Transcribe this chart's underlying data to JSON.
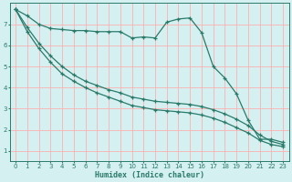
{
  "xlabel": "Humidex (Indice chaleur)",
  "bg_color": "#d4f0f0",
  "line_color": "#2a7a6a",
  "grid_color": "#ffb0b0",
  "xlim": [
    -0.5,
    23.5
  ],
  "ylim": [
    0.5,
    8.0
  ],
  "xticks": [
    0,
    1,
    2,
    3,
    4,
    5,
    6,
    7,
    8,
    9,
    10,
    11,
    12,
    13,
    14,
    15,
    16,
    17,
    18,
    19,
    20,
    21,
    22,
    23
  ],
  "yticks": [
    1,
    2,
    3,
    4,
    5,
    6,
    7
  ],
  "series1_x": [
    0,
    1,
    2,
    3,
    4,
    5,
    6,
    7,
    8,
    9,
    10,
    11,
    12,
    13,
    14,
    15,
    16,
    17,
    18,
    19,
    20,
    21,
    22,
    23
  ],
  "series1_y": [
    7.7,
    7.4,
    7.0,
    6.8,
    6.75,
    6.7,
    6.7,
    6.65,
    6.65,
    6.65,
    6.35,
    6.4,
    6.35,
    7.1,
    7.25,
    7.3,
    6.6,
    5.0,
    4.45,
    3.7,
    2.45,
    1.55,
    1.55,
    1.4
  ],
  "series2_x": [
    0,
    1,
    2,
    3,
    4,
    5,
    6,
    7,
    8,
    9,
    10,
    11,
    12,
    13,
    14,
    15,
    16,
    17,
    18,
    19,
    20,
    21,
    22,
    23
  ],
  "series2_y": [
    7.7,
    6.85,
    6.1,
    5.5,
    5.0,
    4.6,
    4.3,
    4.1,
    3.9,
    3.75,
    3.55,
    3.45,
    3.35,
    3.3,
    3.25,
    3.2,
    3.1,
    2.95,
    2.75,
    2.5,
    2.2,
    1.75,
    1.45,
    1.3
  ],
  "series3_x": [
    0,
    1,
    2,
    3,
    4,
    5,
    6,
    7,
    8,
    9,
    10,
    11,
    12,
    13,
    14,
    15,
    16,
    17,
    18,
    19,
    20,
    21,
    22,
    23
  ],
  "series3_y": [
    7.7,
    6.65,
    5.85,
    5.2,
    4.65,
    4.3,
    4.0,
    3.75,
    3.55,
    3.35,
    3.15,
    3.05,
    2.95,
    2.9,
    2.85,
    2.8,
    2.7,
    2.55,
    2.35,
    2.1,
    1.85,
    1.5,
    1.3,
    1.2
  ]
}
